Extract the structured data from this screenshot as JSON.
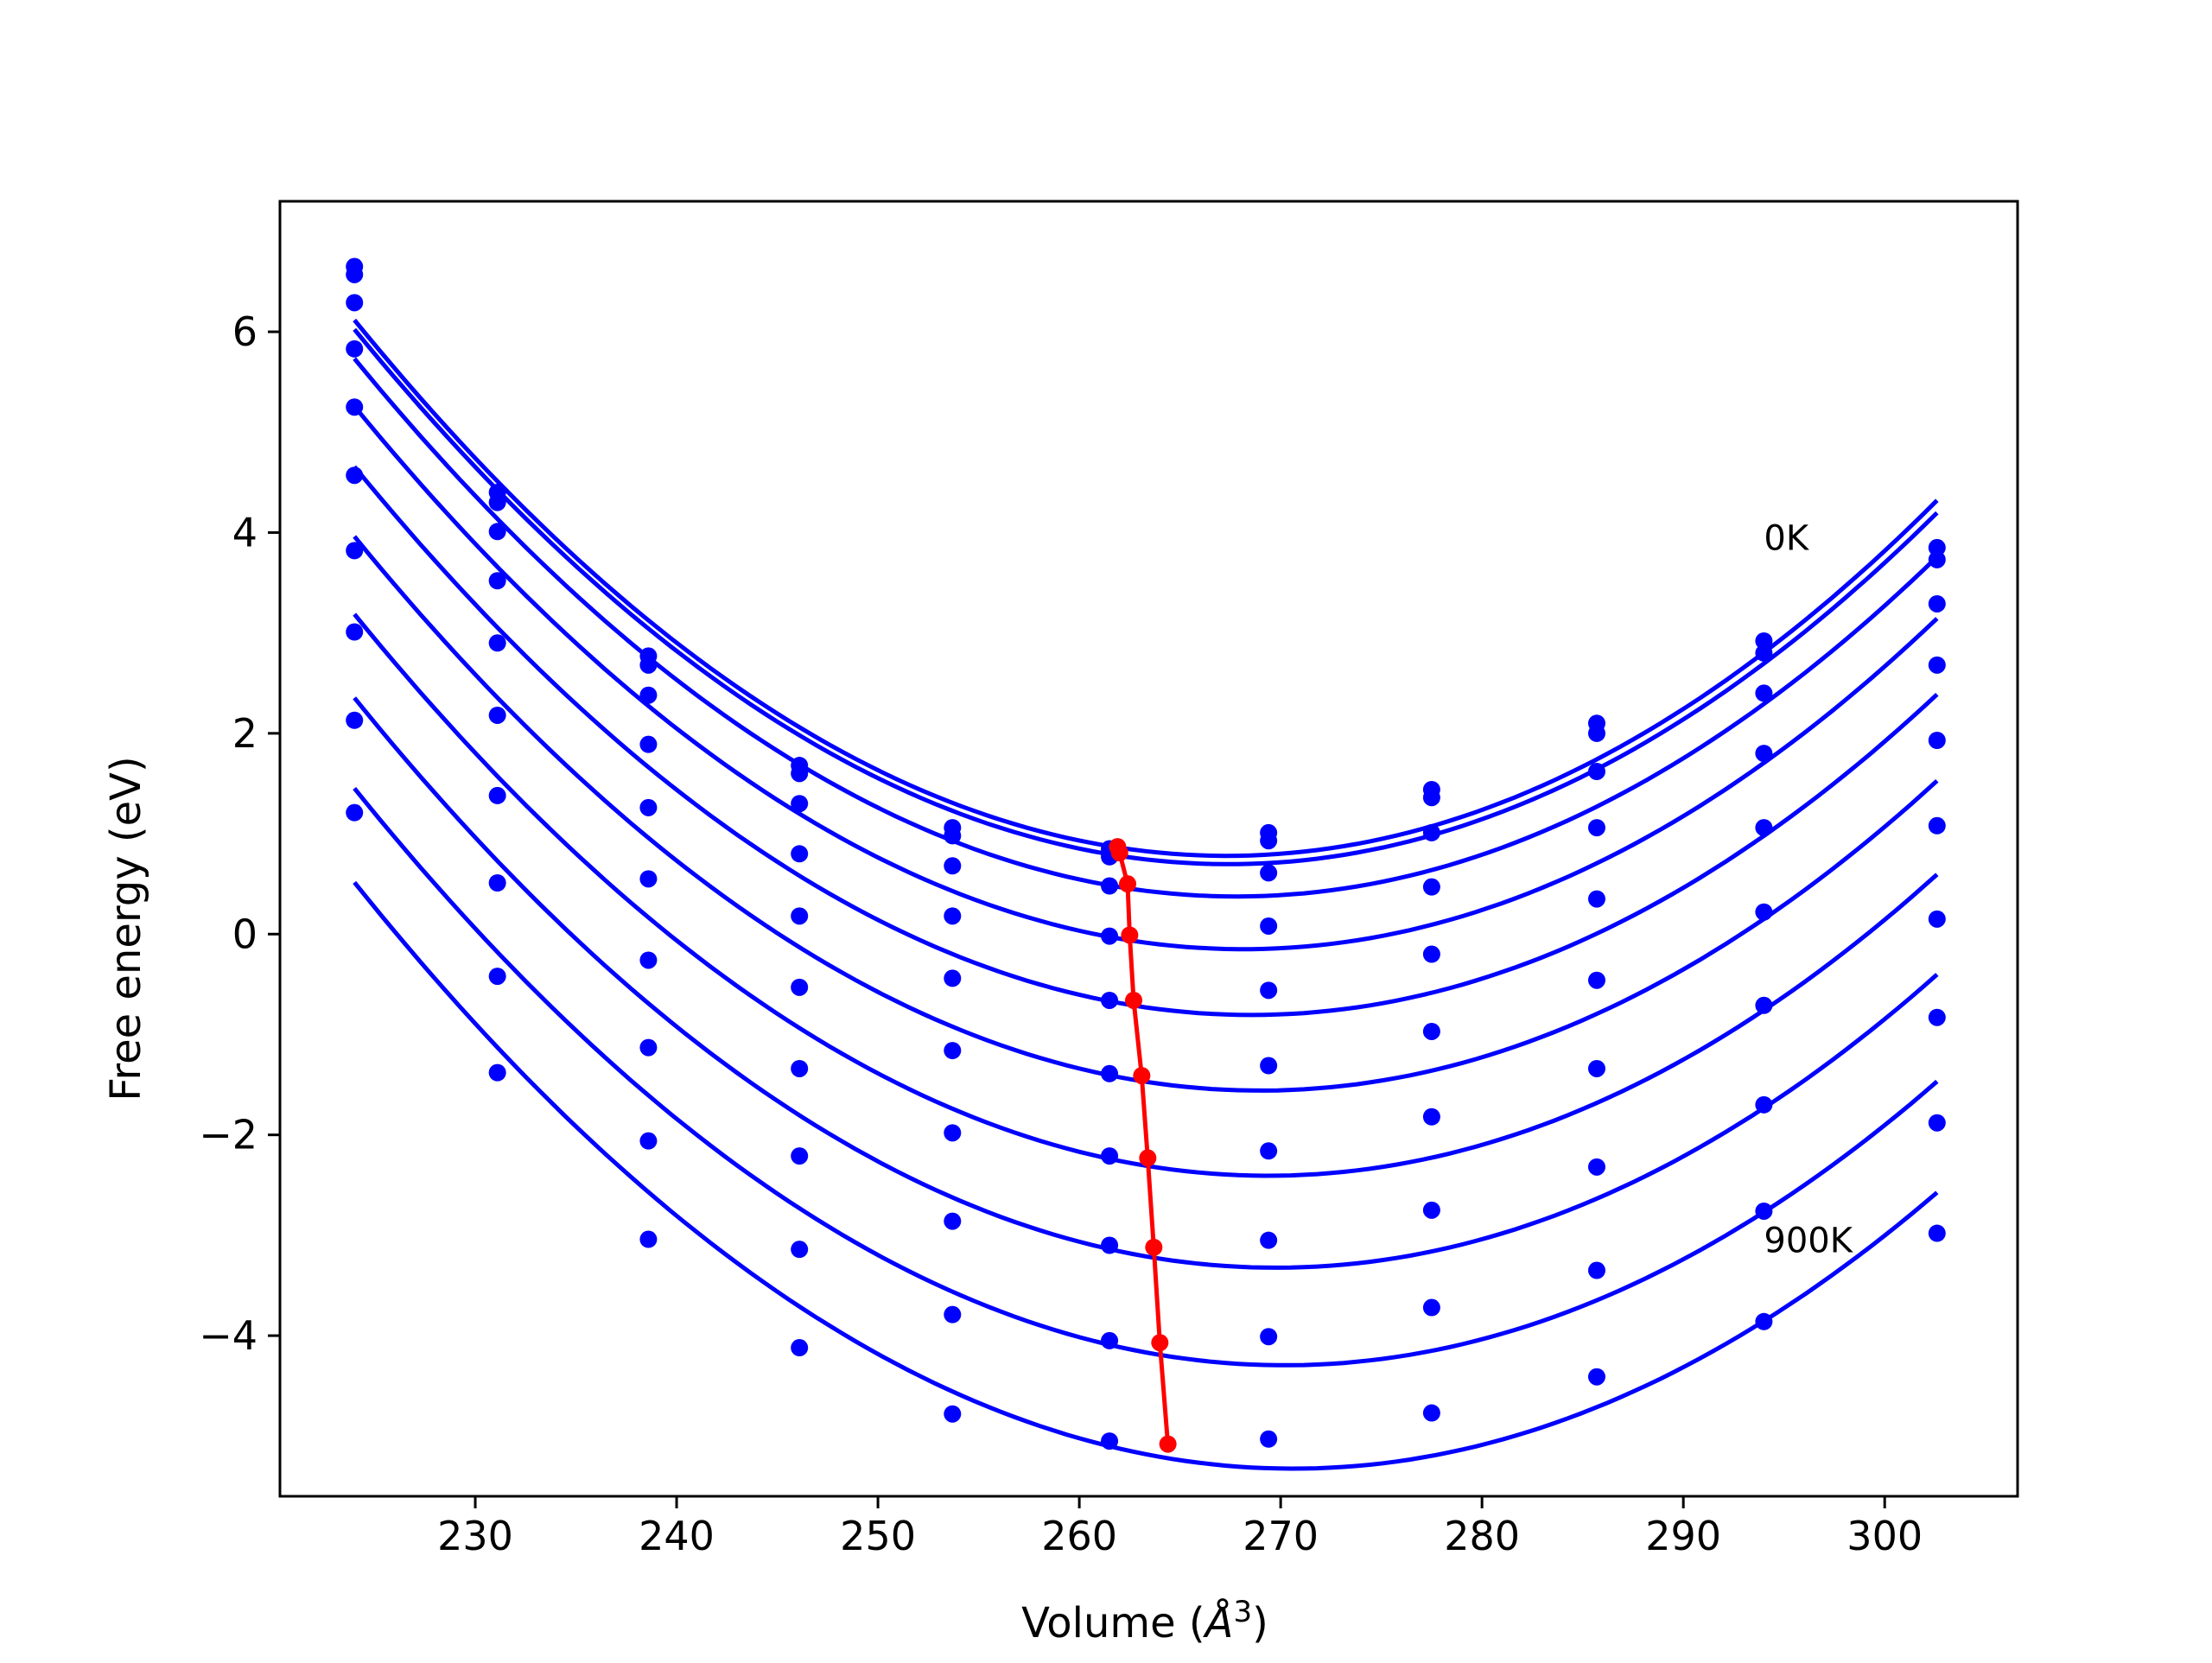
{
  "chart_data": {
    "type": "line",
    "xlabel": "Volume ($\\AA^3$)",
    "xlabel_prefix": "Volume (",
    "xlabel_symbol": "Å",
    "xlabel_exp": "3",
    "xlabel_suffix": ")",
    "ylabel": "Free energy (eV)",
    "xlim": [
      220.3,
      306.6
    ],
    "ylim": [
      -5.6,
      7.3
    ],
    "xticks": [
      230,
      240,
      250,
      260,
      270,
      280,
      290,
      300
    ],
    "yticks": [
      -4,
      -2,
      0,
      2,
      4,
      6
    ],
    "ytick_labels": [
      "−4",
      "−2",
      "0",
      "2",
      "4",
      "6"
    ],
    "grid": false,
    "annotations": [
      {
        "text": "0K",
        "x": 294.0,
        "y": 3.95
      },
      {
        "text": "900K",
        "x": 294.0,
        "y": -3.05
      }
    ],
    "colors": {
      "fits": "#0000ff",
      "minima": "#ff0000",
      "frame": "#000000"
    },
    "x": [
      224.0,
      231.1,
      238.6,
      246.1,
      253.7,
      261.5,
      269.4,
      277.5,
      285.7,
      294.0,
      302.6
    ],
    "series": [
      {
        "values": [
          6.65,
          4.4,
          2.77,
          1.68,
          1.06,
          0.85,
          1.01,
          1.44,
          2.1,
          2.92,
          3.85
        ]
      },
      {
        "values": [
          6.57,
          4.3,
          2.68,
          1.6,
          0.98,
          0.77,
          0.93,
          1.36,
          2.0,
          2.8,
          3.73
        ]
      },
      {
        "values": [
          6.29,
          4.01,
          2.38,
          1.3,
          0.68,
          0.48,
          0.61,
          1.01,
          1.62,
          2.4,
          3.29
        ]
      },
      {
        "values": [
          5.83,
          3.52,
          1.89,
          0.8,
          0.18,
          -0.02,
          0.08,
          0.47,
          1.06,
          1.8,
          2.68
        ]
      },
      {
        "values": [
          5.25,
          2.9,
          1.26,
          0.18,
          -0.44,
          -0.66,
          -0.56,
          -0.2,
          0.35,
          1.06,
          1.93
        ]
      },
      {
        "values": [
          4.57,
          2.18,
          0.55,
          -0.53,
          -1.16,
          -1.39,
          -1.31,
          -0.97,
          -0.46,
          0.22,
          1.08
        ]
      },
      {
        "values": [
          3.82,
          1.38,
          -0.26,
          -1.34,
          -1.98,
          -2.21,
          -2.16,
          -1.82,
          -1.34,
          -0.71,
          0.15
        ]
      },
      {
        "values": [
          3.01,
          0.51,
          -1.13,
          -2.21,
          -2.86,
          -3.1,
          -3.05,
          -2.75,
          -2.32,
          -1.7,
          -0.83
        ]
      },
      {
        "values": [
          2.13,
          -0.42,
          -2.06,
          -3.14,
          -3.79,
          -4.05,
          -4.01,
          -3.72,
          -3.35,
          -2.76,
          -1.88
        ]
      },
      {
        "values": [
          1.21,
          -1.38,
          -3.04,
          -4.12,
          -4.78,
          -5.05,
          -5.03,
          -4.77,
          -4.41,
          -3.86,
          -2.98
        ]
      }
    ],
    "minima": {
      "x": [
        261.9,
        262.0,
        262.4,
        262.5,
        262.7,
        263.1,
        263.4,
        263.7,
        264.0,
        264.4
      ],
      "y": [
        0.87,
        0.81,
        0.5,
        -0.01,
        -0.66,
        -1.41,
        -2.23,
        -3.12,
        -4.07,
        -5.08
      ]
    }
  }
}
